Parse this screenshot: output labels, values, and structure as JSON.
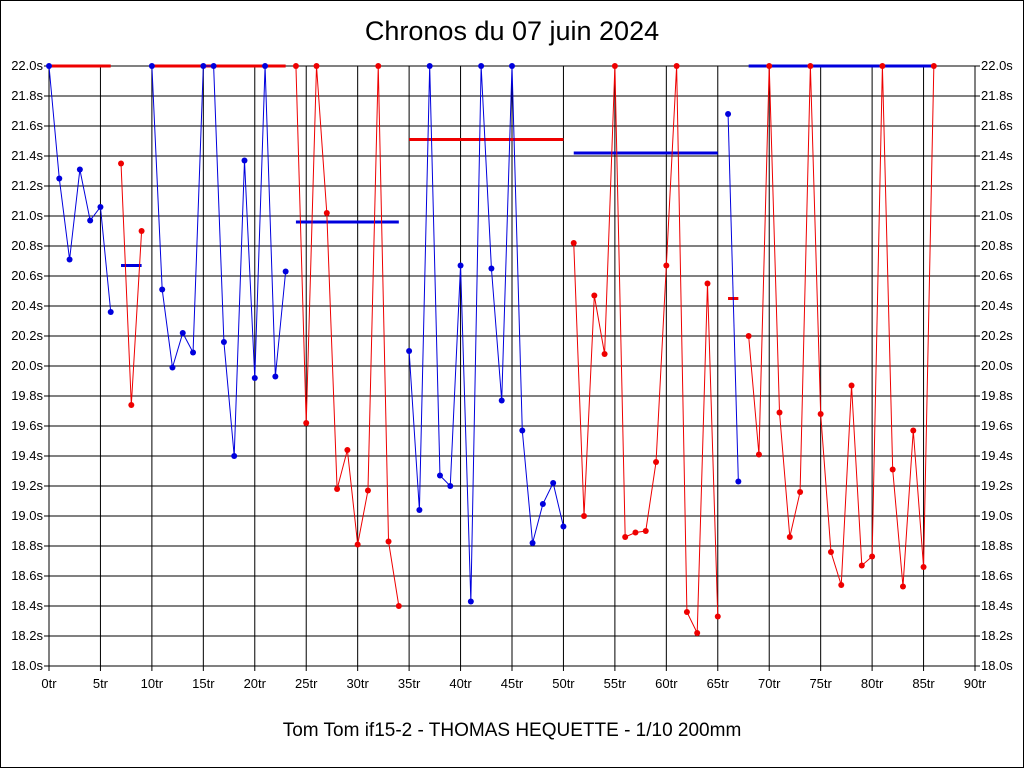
{
  "chart_data": {
    "type": "line",
    "title": "Chronos du 07 juin 2024",
    "subtitle": "Tom Tom if15-2 - THOMAS HEQUETTE - 1/10 200mm",
    "xlim": [
      0,
      90
    ],
    "ylim": [
      18.0,
      22.0
    ],
    "grid": true,
    "x_ticks": [
      "0tr",
      "5tr",
      "10tr",
      "15tr",
      "20tr",
      "25tr",
      "30tr",
      "35tr",
      "40tr",
      "45tr",
      "50tr",
      "55tr",
      "60tr",
      "65tr",
      "70tr",
      "75tr",
      "80tr",
      "85tr",
      "90tr"
    ],
    "x_tick_values": [
      0,
      5,
      10,
      15,
      20,
      25,
      30,
      35,
      40,
      45,
      50,
      55,
      60,
      65,
      70,
      75,
      80,
      85,
      90
    ],
    "y_ticks": [
      "18.0s",
      "18.2s",
      "18.4s",
      "18.6s",
      "18.8s",
      "19.0s",
      "19.2s",
      "19.4s",
      "19.6s",
      "19.8s",
      "20.0s",
      "20.2s",
      "20.4s",
      "20.6s",
      "20.8s",
      "21.0s",
      "21.2s",
      "21.4s",
      "21.6s",
      "21.8s",
      "22.0s"
    ],
    "y_tick_values": [
      18.0,
      18.2,
      18.4,
      18.6,
      18.8,
      19.0,
      19.2,
      19.4,
      19.6,
      19.8,
      20.0,
      20.2,
      20.4,
      20.6,
      20.8,
      21.0,
      21.2,
      21.4,
      21.6,
      21.8,
      22.0
    ],
    "colors": {
      "blue": "#0000dd",
      "red": "#ee0000"
    },
    "series": [
      {
        "color": "#0000dd",
        "x": [
          0,
          1,
          2,
          3,
          4,
          5,
          6
        ],
        "y": [
          22.0,
          21.25,
          20.71,
          21.31,
          20.97,
          21.06,
          20.36
        ]
      },
      {
        "color": "#ee0000",
        "x": [
          7,
          8,
          9
        ],
        "y": [
          21.35,
          19.74,
          20.9
        ]
      },
      {
        "color": "#0000dd",
        "x": [
          10,
          11,
          12,
          13,
          14,
          15,
          16,
          17,
          18,
          19,
          20,
          21,
          22,
          23
        ],
        "y": [
          22.0,
          20.51,
          19.99,
          20.22,
          20.09,
          22.0,
          22.0,
          20.16,
          19.4,
          21.37,
          19.92,
          22.0,
          19.93,
          20.63
        ]
      },
      {
        "color": "#ee0000",
        "x": [
          24,
          25,
          26,
          27,
          28,
          29,
          30,
          31,
          32,
          33,
          34
        ],
        "y": [
          22.0,
          19.62,
          22.0,
          21.02,
          19.18,
          19.44,
          18.81,
          19.17,
          22.0,
          18.83,
          18.4
        ]
      },
      {
        "color": "#0000dd",
        "x": [
          35,
          36,
          37,
          38,
          39,
          40,
          41,
          42,
          43,
          44,
          45,
          46,
          47,
          48,
          49,
          50
        ],
        "y": [
          20.1,
          19.04,
          22.0,
          19.27,
          19.2,
          20.67,
          18.43,
          22.0,
          20.65,
          19.77,
          22.0,
          19.57,
          18.82,
          19.08,
          19.22,
          18.93
        ]
      },
      {
        "color": "#ee0000",
        "x": [
          51,
          52,
          53,
          54,
          55,
          56,
          57,
          58,
          59,
          60,
          61,
          62,
          63,
          64,
          65
        ],
        "y": [
          20.82,
          19.0,
          20.47,
          20.08,
          22.0,
          18.86,
          18.89,
          18.9,
          19.36,
          20.67,
          22.0,
          18.36,
          18.22,
          20.55,
          18.33
        ]
      },
      {
        "color": "#0000dd",
        "x": [
          66,
          67
        ],
        "y": [
          21.68,
          19.23
        ]
      },
      {
        "color": "#ee0000",
        "x": [
          68,
          69,
          70,
          71,
          72,
          73,
          74,
          75,
          76,
          77,
          78,
          79,
          80,
          81,
          82,
          83,
          84,
          85,
          86
        ],
        "y": [
          20.2,
          19.41,
          22.0,
          19.69,
          18.86,
          19.16,
          22.0,
          19.68,
          18.76,
          18.54,
          19.87,
          18.67,
          18.73,
          22.0,
          19.31,
          18.53,
          19.57,
          18.66,
          22.0
        ]
      }
    ],
    "reference_lines": [
      {
        "color": "#ee0000",
        "x": [
          0,
          6
        ],
        "y": 22.0
      },
      {
        "color": "#0000dd",
        "x": [
          7,
          9
        ],
        "y": 20.67
      },
      {
        "color": "#ee0000",
        "x": [
          10,
          23
        ],
        "y": 22.0
      },
      {
        "color": "#0000dd",
        "x": [
          24,
          34
        ],
        "y": 20.96
      },
      {
        "color": "#ee0000",
        "x": [
          35,
          50
        ],
        "y": 21.51
      },
      {
        "color": "#0000dd",
        "x": [
          51,
          65
        ],
        "y": 21.42
      },
      {
        "color": "#ee0000",
        "x": [
          66,
          67
        ],
        "y": 20.45
      },
      {
        "color": "#0000dd",
        "x": [
          68,
          86
        ],
        "y": 22.0
      }
    ]
  }
}
